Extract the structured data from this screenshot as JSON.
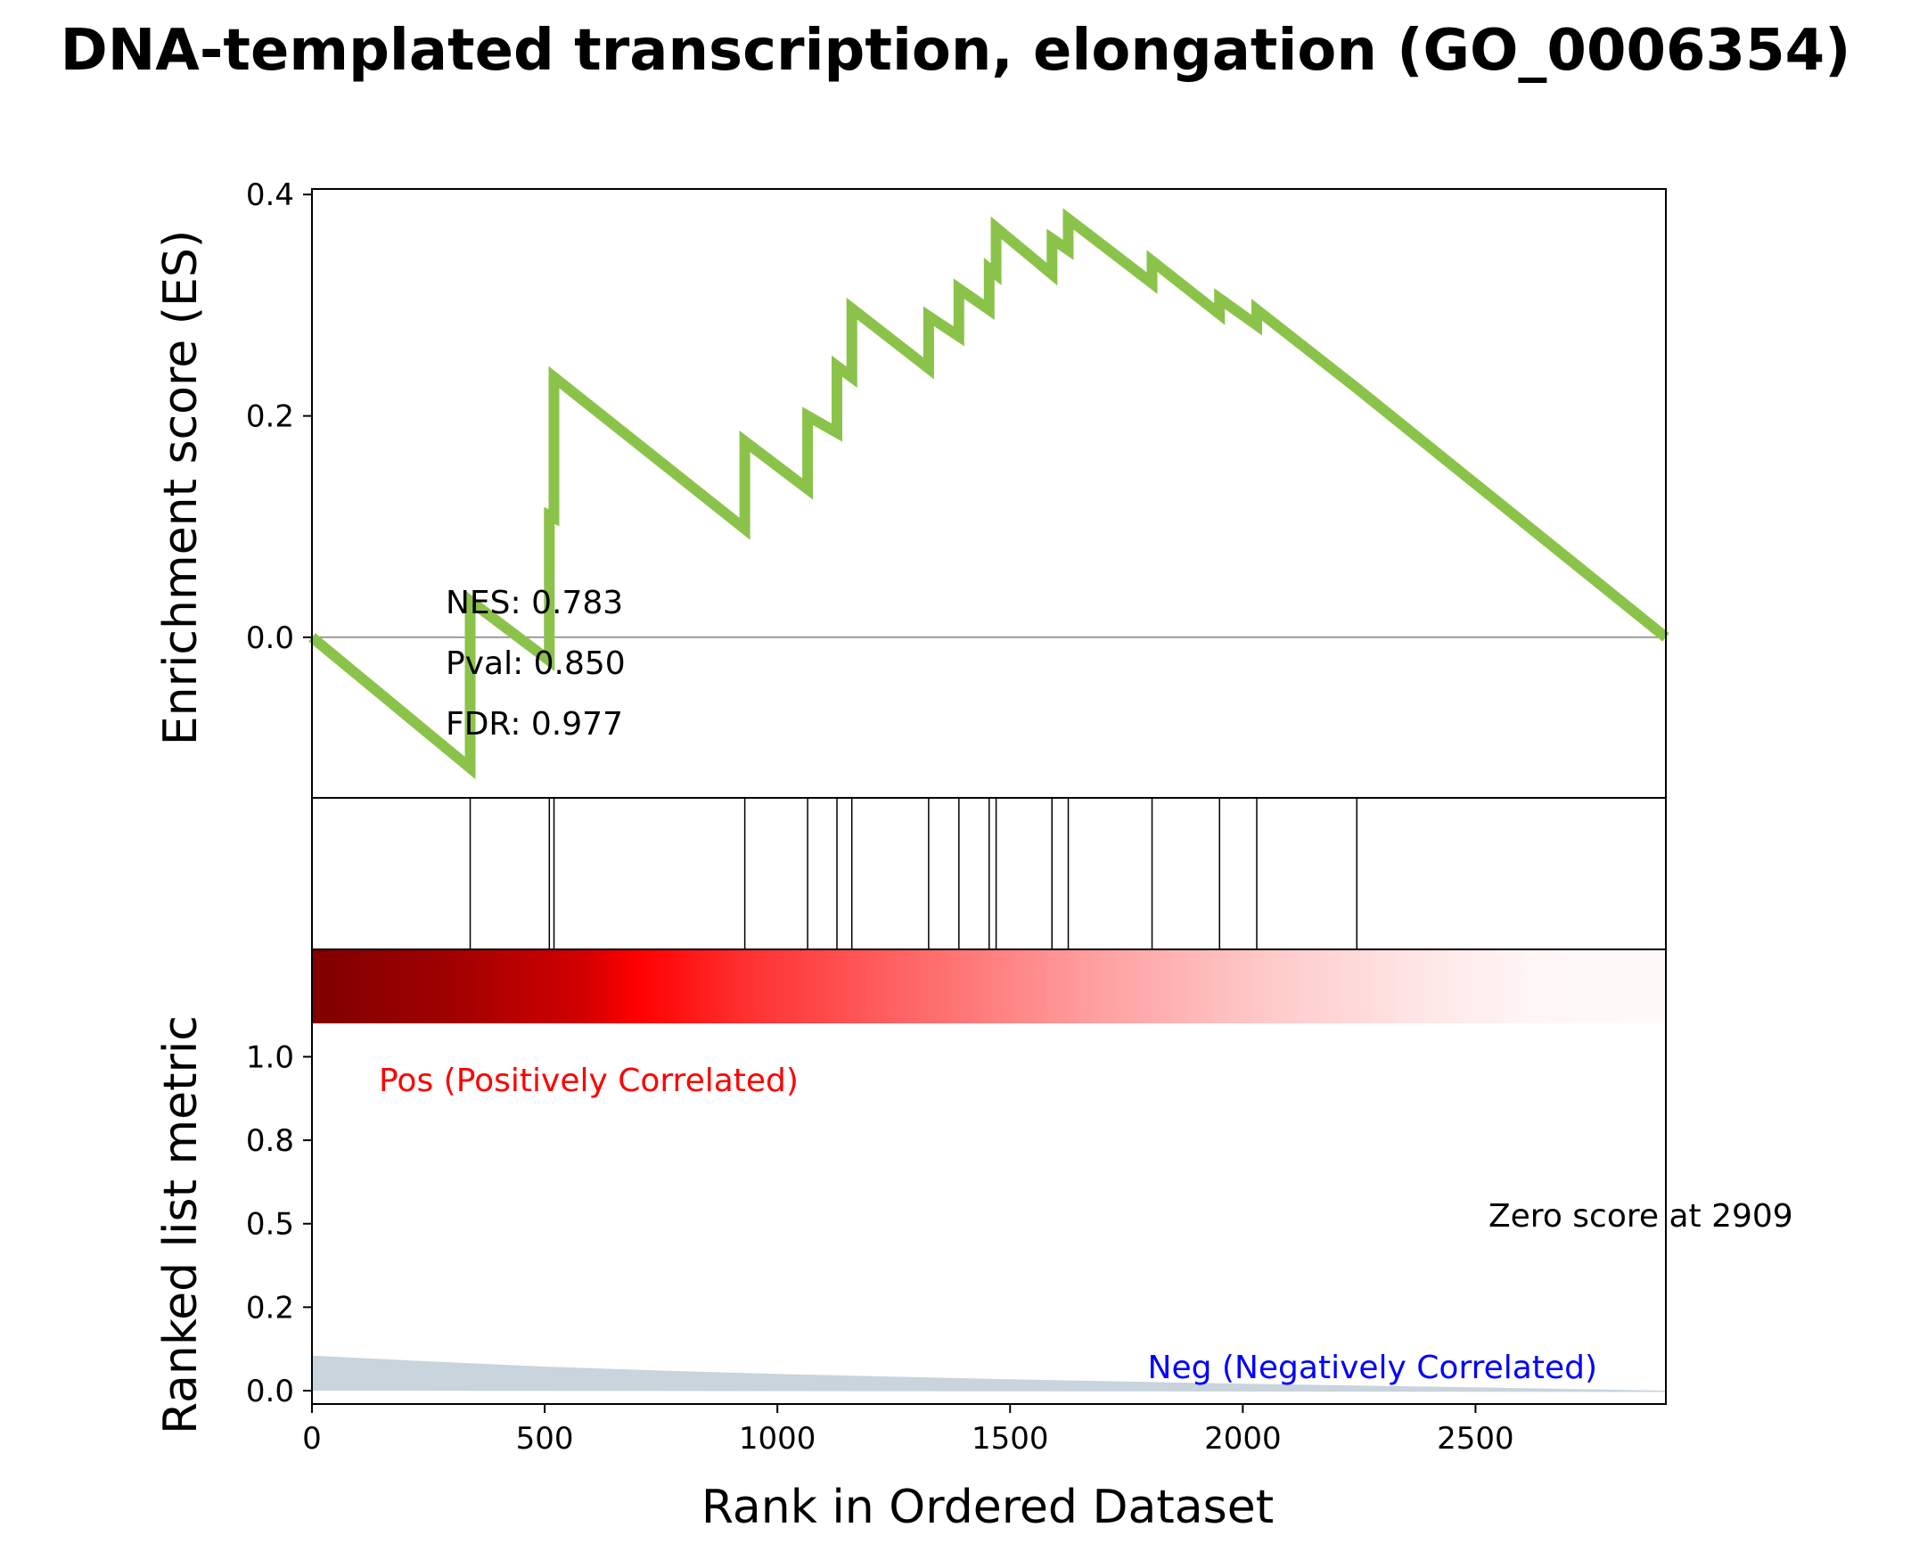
{
  "chart_data": {
    "type": "line",
    "title": "DNA-templated transcription, elongation (GO_0006354)",
    "es_panel": {
      "ylabel": "Enrichment score (ES)",
      "ylim": [
        -0.145,
        0.405
      ],
      "yticks": [
        0.0,
        0.2,
        0.4
      ],
      "ytick_labels": [
        "0.0",
        "0.2",
        "0.4"
      ],
      "line_color": "#8bc34a",
      "zero_line": true,
      "series": [
        {
          "x": [
            0,
            340,
            340,
            510,
            510,
            520,
            520,
            930,
            930,
            1065,
            1065,
            1128,
            1128,
            1160,
            1160,
            1325,
            1325,
            1390,
            1390,
            1455,
            1455,
            1470,
            1470,
            1590,
            1590,
            1625,
            1625,
            1805,
            1805,
            1950,
            1950,
            2030,
            2030,
            2245,
            2909
          ],
          "y": [
            0.0,
            -0.118,
            0.033,
            -0.021,
            0.11,
            0.108,
            0.235,
            0.098,
            0.177,
            0.134,
            0.2,
            0.185,
            0.245,
            0.235,
            0.297,
            0.243,
            0.29,
            0.272,
            0.315,
            0.296,
            0.333,
            0.328,
            0.37,
            0.328,
            0.36,
            0.35,
            0.378,
            0.32,
            0.34,
            0.292,
            0.306,
            0.282,
            0.296,
            0.225,
            0.0
          ]
        }
      ],
      "stats": {
        "nes": "NES: 0.783",
        "pval": "Pval: 0.850",
        "fdr": "FDR: 0.977"
      }
    },
    "hits_panel": {
      "hit_positions": [
        340,
        510,
        520,
        930,
        1065,
        1128,
        1160,
        1325,
        1390,
        1455,
        1470,
        1590,
        1625,
        1805,
        1950,
        2030,
        2245
      ]
    },
    "rank_panel": {
      "ylabel": "Ranked list metric",
      "xlabel": "Rank in Ordered Dataset",
      "xlim": [
        0,
        2909
      ],
      "xticks": [
        0,
        500,
        1000,
        1500,
        2000,
        2500
      ],
      "xtick_labels": [
        "0",
        "500",
        "1000",
        "1500",
        "2000",
        "2500"
      ],
      "ylim": [
        -0.04,
        1.1
      ],
      "yticks": [
        0.0,
        0.25,
        0.5,
        0.75,
        1.0
      ],
      "ytick_labels": [
        "0.0",
        "0.2",
        "0.5",
        "0.8",
        "1.0"
      ],
      "fill_color": "#c9d4dc",
      "metric": {
        "x": [
          0,
          250,
          500,
          750,
          1000,
          1500,
          2000,
          2500,
          2909
        ],
        "y": [
          0.105,
          0.088,
          0.072,
          0.06,
          0.05,
          0.034,
          0.021,
          0.01,
          0.0
        ]
      },
      "pos_label": "Pos (Positively Correlated)",
      "neg_label": "Neg (Negatively Correlated)",
      "zero_score_label": "Zero score at 2909",
      "pos_color": "#ff0000",
      "neg_color": "#0000ff"
    }
  }
}
